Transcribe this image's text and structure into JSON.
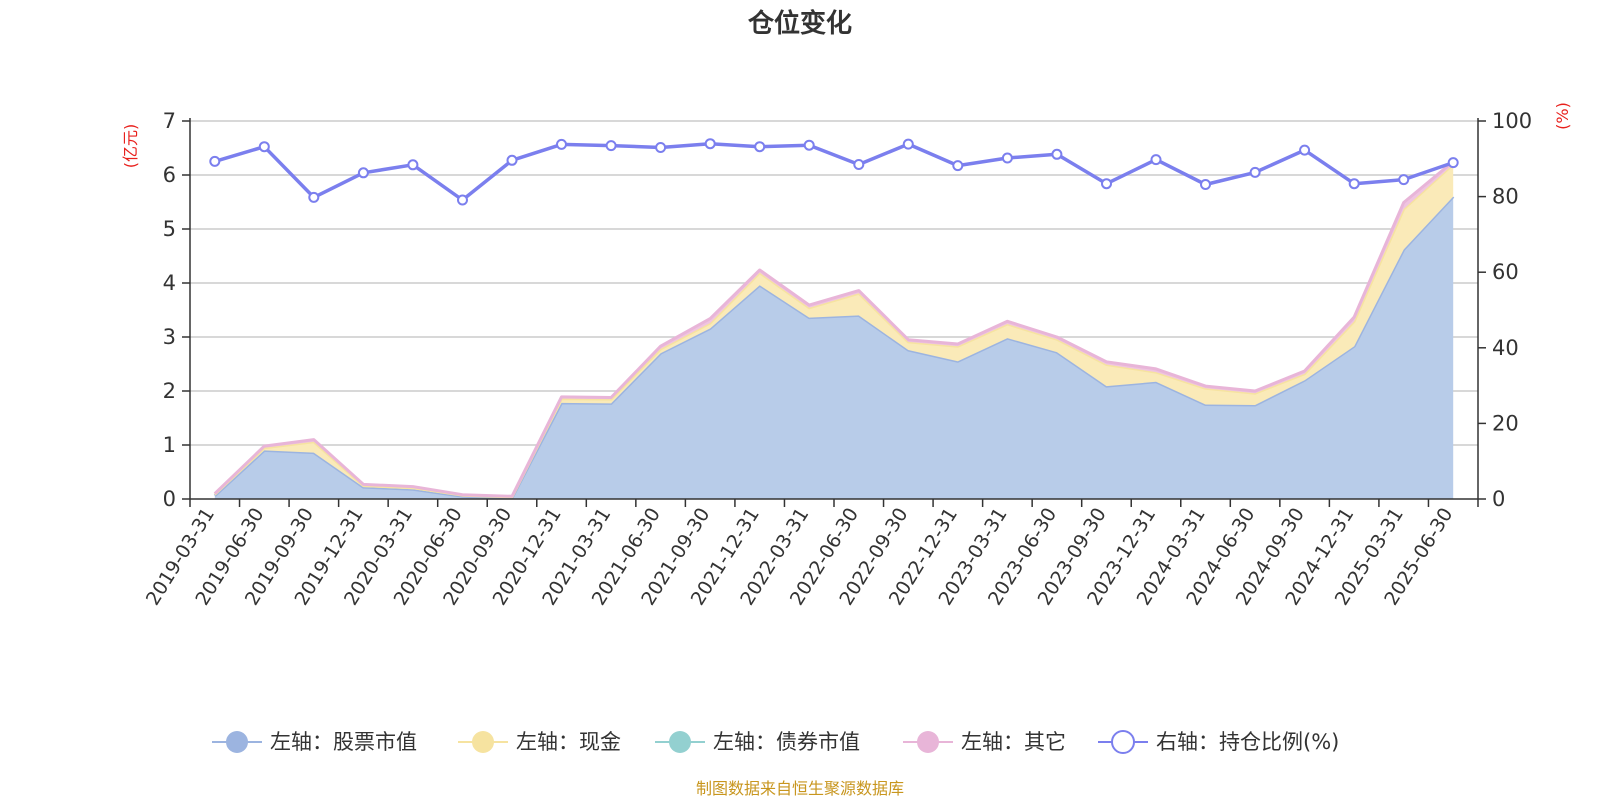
{
  "chart_data": {
    "type": "area",
    "title": "仓位变化",
    "left_unit": "(亿元)",
    "right_unit": "(%)",
    "left_ylim": [
      0,
      7
    ],
    "right_ylim": [
      0,
      100
    ],
    "left_ticks": [
      "0",
      "1",
      "2",
      "3",
      "4",
      "5",
      "6",
      "7"
    ],
    "right_ticks": [
      "0",
      "20",
      "40",
      "60",
      "80",
      "100"
    ],
    "grid": true,
    "legend_position": "bottom",
    "stacked": true,
    "categories": [
      "2019-03-31",
      "2019-06-30",
      "2019-09-30",
      "2019-12-31",
      "2020-03-31",
      "2020-06-30",
      "2020-09-30",
      "2020-12-31",
      "2021-03-31",
      "2021-06-30",
      "2021-09-30",
      "2021-12-31",
      "2022-03-31",
      "2022-06-30",
      "2022-09-30",
      "2022-12-31",
      "2023-03-31",
      "2023-06-30",
      "2023-09-30",
      "2023-12-31",
      "2024-03-31",
      "2024-06-30",
      "2024-09-30",
      "2024-12-31",
      "2025-03-31",
      "2025-06-30"
    ],
    "series": [
      {
        "name": "左轴：股票市值",
        "axis": "left",
        "color": "#9cb4e0",
        "fill": "#b8cce9",
        "values": [
          0.06,
          0.9,
          0.86,
          0.22,
          0.18,
          0.05,
          0.02,
          1.78,
          1.77,
          2.7,
          3.16,
          3.96,
          3.36,
          3.4,
          2.76,
          2.55,
          2.98,
          2.72,
          2.09,
          2.17,
          1.75,
          1.74,
          2.2,
          2.83,
          4.62,
          5.6
        ]
      },
      {
        "name": "左轴：现金",
        "axis": "left",
        "color": "#f6e3a0",
        "fill": "#faeab8",
        "values": [
          0.03,
          0.05,
          0.2,
          0.03,
          0.03,
          0.02,
          0.02,
          0.08,
          0.08,
          0.08,
          0.1,
          0.23,
          0.18,
          0.41,
          0.15,
          0.28,
          0.26,
          0.24,
          0.4,
          0.18,
          0.3,
          0.22,
          0.12,
          0.46,
          0.75,
          0.6
        ]
      },
      {
        "name": "左轴：债券市值",
        "axis": "left",
        "color": "#93d0d0",
        "fill": "#93d0d0",
        "values": [
          0,
          0,
          0,
          0,
          0,
          0,
          0,
          0,
          0,
          0,
          0,
          0,
          0,
          0,
          0,
          0,
          0,
          0,
          0,
          0,
          0,
          0,
          0,
          0,
          0,
          0
        ]
      },
      {
        "name": "左轴：其它",
        "axis": "left",
        "color": "#e8b5d8",
        "fill": "#efc4e0",
        "values": [
          0.01,
          0.03,
          0.04,
          0.02,
          0.02,
          0.01,
          0.01,
          0.03,
          0.03,
          0.05,
          0.08,
          0.05,
          0.05,
          0.05,
          0.04,
          0.04,
          0.05,
          0.04,
          0.05,
          0.06,
          0.04,
          0.04,
          0.05,
          0.08,
          0.12,
          0.05
        ]
      },
      {
        "name": "右轴：持仓比例(%)",
        "axis": "right",
        "color": "#7b7fee",
        "values": [
          89.3,
          93.2,
          79.8,
          86.3,
          88.4,
          79.1,
          89.6,
          93.8,
          93.5,
          93.0,
          94.0,
          93.2,
          93.6,
          88.5,
          93.9,
          88.2,
          90.2,
          91.2,
          83.4,
          89.8,
          83.2,
          86.4,
          92.3,
          83.4,
          84.5,
          89.0
        ]
      }
    ]
  },
  "source_note": "制图数据来自恒生聚源数据库"
}
